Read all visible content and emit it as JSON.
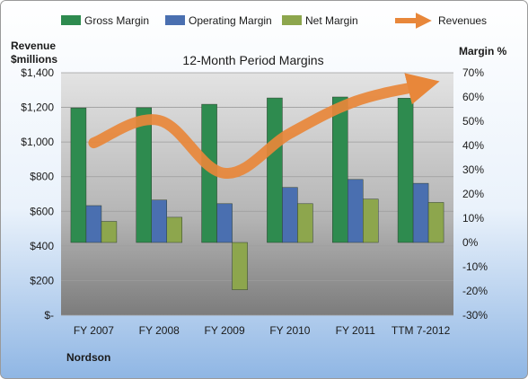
{
  "chart_data": {
    "type": "bar",
    "title": "12-Month Period Margins",
    "company": "Nordson",
    "ylabel_left": "Revenue $millions",
    "ylabel_right": "Margin %",
    "categories": [
      "FY 2007",
      "FY 2008",
      "FY 2009",
      "FY 2010",
      "FY 2011",
      "TTM 7-2012"
    ],
    "left_axis": {
      "ylim": [
        0,
        1400
      ],
      "ticks": [
        0,
        200,
        400,
        600,
        800,
        1000,
        1200,
        1400
      ],
      "tick_labels": [
        "$-",
        "$200",
        "$400",
        "$600",
        "$800",
        "$1,000",
        "$1,200",
        "$1,400"
      ]
    },
    "right_axis": {
      "ylim": [
        -30,
        70
      ],
      "ticks": [
        -30,
        -20,
        -10,
        0,
        10,
        20,
        30,
        40,
        50,
        60,
        70
      ],
      "tick_labels": [
        "-30%",
        "-20%",
        "-10%",
        "0%",
        "10%",
        "20%",
        "30%",
        "40%",
        "50%",
        "60%",
        "70%"
      ]
    },
    "series": [
      {
        "name": "Gross Margin",
        "kind": "bar",
        "axis": "right",
        "color": "#2e8b4f",
        "values": [
          55.5,
          55.6,
          57.0,
          59.6,
          60.0,
          59.5
        ]
      },
      {
        "name": "Operating Margin",
        "kind": "bar",
        "axis": "right",
        "color": "#4a6fb0",
        "values": [
          15.2,
          17.5,
          16.0,
          22.7,
          26.0,
          24.4
        ]
      },
      {
        "name": "Net Margin",
        "kind": "bar",
        "axis": "right",
        "color": "#8da64d",
        "values": [
          8.7,
          10.4,
          -19.5,
          16.0,
          17.9,
          16.5
        ]
      },
      {
        "name": "Revenues",
        "kind": "line",
        "axis": "left",
        "color": "#e8873a",
        "values": [
          995,
          1125,
          820,
          1050,
          1235,
          1325
        ]
      }
    ],
    "grid": true,
    "legend": "top"
  }
}
